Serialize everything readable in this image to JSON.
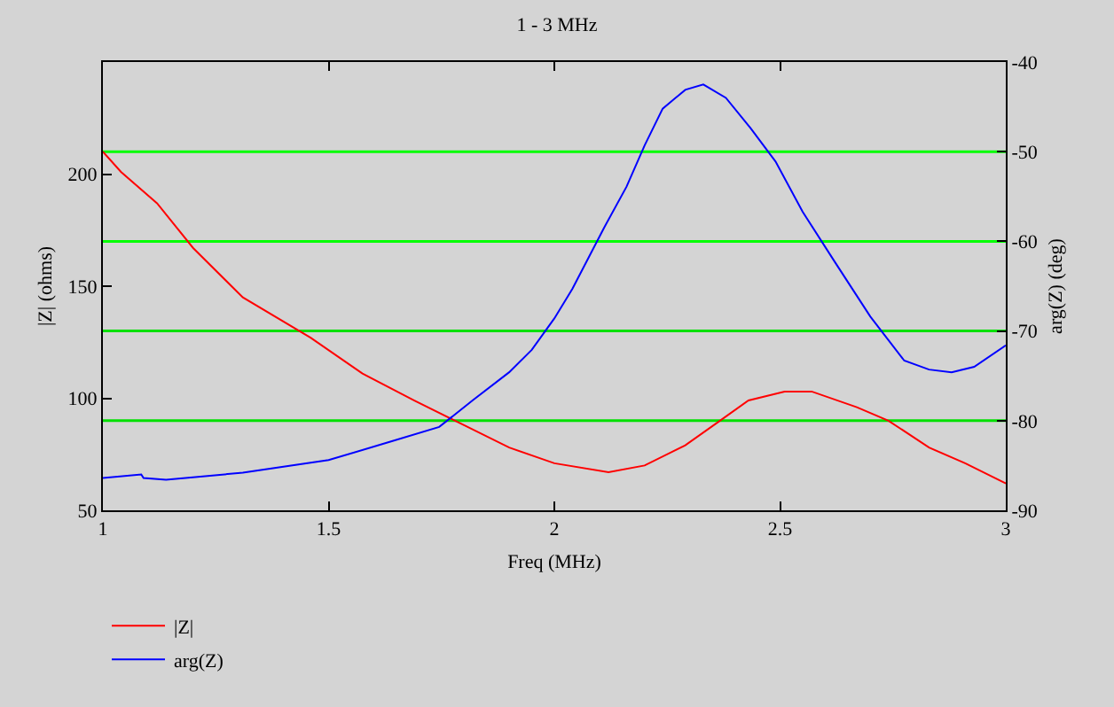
{
  "chart_data": {
    "type": "line",
    "title": "1 - 3 MHz",
    "xlabel": "Freq (MHz)",
    "ylabel": "|Z| (ohms)",
    "y2label": "arg(Z) (deg)",
    "xlim": [
      1,
      3
    ],
    "xticks": [
      1,
      1.5,
      2,
      2.5,
      3
    ],
    "ylim": [
      50,
      250
    ],
    "yticks": [
      50,
      100,
      150,
      200
    ],
    "y2lim": [
      -90,
      -40
    ],
    "y2ticks": [
      -40,
      -50,
      -60,
      -70,
      -80,
      -90
    ],
    "grid": false,
    "legend": "bottom left",
    "marker": "none",
    "line_style": "solid",
    "ref_lines": [
      {
        "axis": "y",
        "value": 210,
        "color": "#00ff00"
      },
      {
        "axis": "y",
        "value": 170,
        "color": "#00ff00"
      },
      {
        "axis": "y",
        "value": 130,
        "color": "#00e000"
      },
      {
        "axis": "y",
        "value": 90,
        "color": "#00e000"
      }
    ],
    "series": [
      {
        "name": "|Z|",
        "color": "#ff0000",
        "x": [
          1.0,
          1.04,
          1.12,
          1.2,
          1.31,
          1.46,
          1.575,
          1.69,
          1.8,
          1.9,
          2.0,
          2.12,
          2.2,
          2.29,
          2.36,
          2.43,
          2.51,
          2.57,
          2.67,
          2.74,
          2.83,
          2.91,
          3.0
        ],
        "values": [
          210,
          201,
          187,
          167,
          145,
          127,
          111,
          99,
          88,
          78,
          71,
          67,
          70,
          79,
          89,
          99,
          103,
          103,
          96,
          90,
          78,
          71,
          62
        ]
      },
      {
        "name": "arg(Z)",
        "color": "#0000ff",
        "axis": "y2",
        "x": [
          1.0,
          1.085,
          1.09,
          1.14,
          1.31,
          1.5,
          1.64,
          1.745,
          1.82,
          1.9,
          1.95,
          2.0,
          2.04,
          2.11,
          2.16,
          2.2,
          2.24,
          2.29,
          2.33,
          2.38,
          2.435,
          2.49,
          2.55,
          2.62,
          2.7,
          2.775,
          2.83,
          2.88,
          2.93,
          3.0
        ],
        "values": [
          -86.4,
          -86.0,
          -86.4,
          -86.6,
          -85.8,
          -84.4,
          -82.3,
          -80.7,
          -77.7,
          -74.6,
          -72.1,
          -68.6,
          -65.3,
          -58.5,
          -53.9,
          -49.3,
          -45.2,
          -43.1,
          -42.5,
          -44.0,
          -47.4,
          -51.1,
          -56.7,
          -62.2,
          -68.4,
          -73.3,
          -74.3,
          -74.6,
          -74.0,
          -71.6
        ]
      }
    ]
  }
}
